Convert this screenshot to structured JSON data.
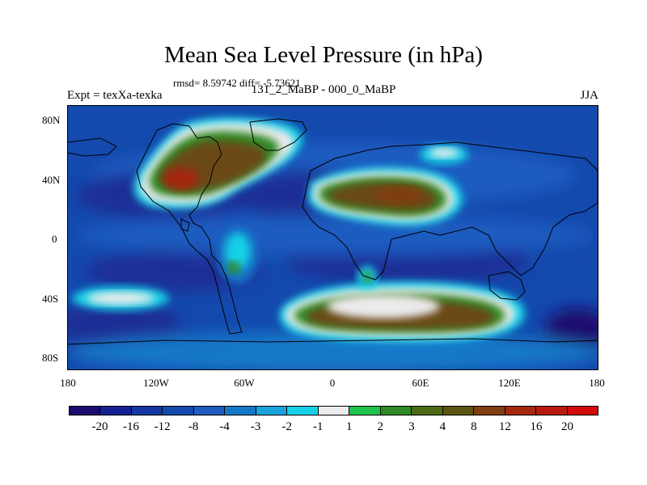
{
  "title": "Mean Sea Level Pressure (in hPa)",
  "stats": "rmsd= 8.59742 diff= -5.73621",
  "expt": "Expt = texXa-texka",
  "comparison": "131_2_MaBP - 000_0_MaBP",
  "season": "JJA",
  "lat_labels": [
    "80N",
    "40N",
    "0",
    "40S",
    "80S"
  ],
  "lon_labels": [
    "180",
    "120W",
    "60W",
    "0",
    "60E",
    "120E",
    "180"
  ],
  "colorbar": {
    "labels": [
      "-20",
      "-16",
      "-12",
      "-8",
      "-4",
      "-3",
      "-2",
      "-1",
      "1",
      "2",
      "3",
      "4",
      "8",
      "12",
      "16",
      "20"
    ],
    "colors": [
      "#1a0b6e",
      "#152193",
      "#1638a4",
      "#1449ad",
      "#1f5cc0",
      "#1378c8",
      "#1aa2dd",
      "#17d0e6",
      "#ebebeb",
      "#1fc24a",
      "#2f8a26",
      "#4c6b14",
      "#5b5512",
      "#803d0d",
      "#a3280c",
      "#b8190c",
      "#d20a0a"
    ]
  }
}
